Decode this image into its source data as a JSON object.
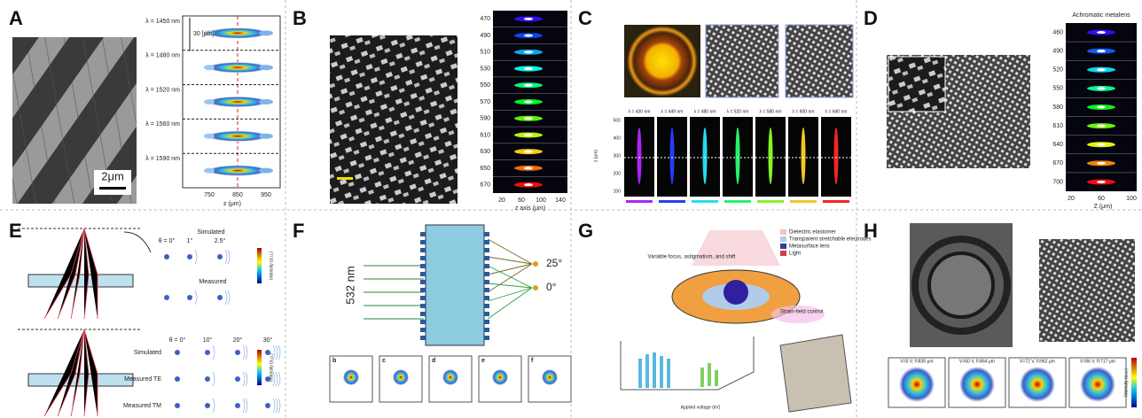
{
  "panels": [
    {
      "letter": "A",
      "wavelengths": [
        "λ = 1450 nm",
        "λ = 1480 nm",
        "λ = 1520 nm",
        "λ = 1560 nm",
        "λ = 1590 nm"
      ],
      "depth_label": "30 [μm]",
      "scale_bar": "2μm",
      "xticks": [
        750,
        850,
        950
      ],
      "xlabel": "z (μm)"
    },
    {
      "letter": "B",
      "wavelengths": [
        470,
        490,
        510,
        530,
        550,
        570,
        590,
        610,
        630,
        650,
        670
      ],
      "xticks": [
        20,
        60,
        100,
        140
      ],
      "xlabel": "z axis (μm)"
    },
    {
      "letter": "C",
      "wavelengths": [
        "λ = 430 nm",
        "λ = 449 nm",
        "λ = 480 nm",
        "λ = 520 nm",
        "λ = 580 nm",
        "λ = 600 nm",
        "λ = 640 nm"
      ],
      "yticks": [
        500,
        400,
        300,
        200,
        100
      ],
      "ylabel": "z (μm)"
    },
    {
      "letter": "D",
      "title": "Achromatic metalens",
      "wavelengths": [
        460,
        490,
        520,
        550,
        580,
        610,
        640,
        670,
        700
      ],
      "xticks": [
        20,
        60,
        100
      ],
      "xlabel": "Z (μm)"
    },
    {
      "letter": "E",
      "top_title": "Simulated",
      "top_angles": [
        "θ = 0°",
        "1°",
        "2.5°"
      ],
      "top_row2": "Measured",
      "bottom_angles": [
        "θ = 0°",
        "10°",
        "20°",
        "30°"
      ],
      "bottom_rows": [
        "Simulated",
        "Measured TE",
        "Measured TM"
      ],
      "colorbar_label": "Intensity (a.u.)"
    },
    {
      "letter": "F",
      "wavelength": "532 nm",
      "angles": [
        "25°",
        "0°"
      ],
      "subpanels": [
        "b",
        "c",
        "d",
        "e",
        "f"
      ]
    },
    {
      "letter": "G",
      "labels": [
        "Variable focus, astigmatism, and shift",
        "Dielectric elastomer",
        "Transparent stretchable electrodes",
        "Metasurface lens",
        "Light",
        "Strain-field control"
      ],
      "xlabel": "Applied voltage (kV)"
    },
    {
      "letter": "H",
      "spots": [
        "V=0 V, f=835 μm",
        "V=60 V, f=864 μm",
        "V=72 V, f=962 μm",
        "V=86 V, f=717 μm"
      ],
      "colorbar_label": "Intensity (a.u.)"
    }
  ]
}
